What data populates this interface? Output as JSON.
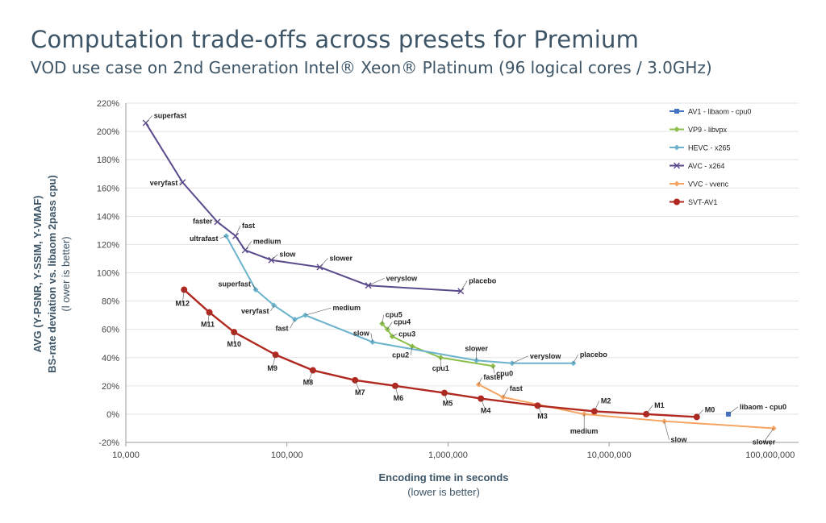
{
  "chart_data": {
    "type": "line",
    "title": "Computation trade-offs across presets for Premium",
    "subtitle": "VOD use case on 2nd Generation Intel® Xeon® Platinum (96 logical cores / 3.0GHz)",
    "xlabel": "Encoding time in seconds",
    "xlabel_note": "(lower is better)",
    "ylabel_lines": [
      "AVG (Y-PSNR, Y-SSIM, Y-VMAF)",
      "BS-rate deviation vs. libaom 2pass cpu)",
      "(l ower is better)"
    ],
    "x_scale": "log",
    "xlim": [
      10000,
      150000000
    ],
    "ylim": [
      -20,
      220
    ],
    "x_ticks": [
      10000,
      100000,
      1000000,
      10000000,
      100000000
    ],
    "x_tick_labels": [
      "10,000",
      "100,000",
      "1,000,000",
      "10,000,000",
      "100,000,000"
    ],
    "y_ticks": [
      -20,
      0,
      20,
      40,
      60,
      80,
      100,
      120,
      140,
      160,
      180,
      200,
      220
    ],
    "y_tick_labels": [
      "-20%",
      "0%",
      "20%",
      "40%",
      "60%",
      "80%",
      "100%",
      "120%",
      "140%",
      "160%",
      "180%",
      "200%",
      "220%"
    ],
    "grid": "horizontal",
    "legend_position": "top-right",
    "series": [
      {
        "name": "AV1 - libaom - cpu0",
        "color": "#4472c4",
        "marker": "square",
        "points": [
          {
            "x": 55000000,
            "y": 0,
            "label": "libaom - cpu0"
          }
        ]
      },
      {
        "name": "VP9 - libvpx",
        "color": "#8cbf4a",
        "marker": "diamond",
        "points": [
          {
            "x": 390000,
            "y": 64,
            "label": "cpu5"
          },
          {
            "x": 420000,
            "y": 60,
            "label": "cpu4"
          },
          {
            "x": 450000,
            "y": 55,
            "label": "cpu3"
          },
          {
            "x": 600000,
            "y": 48,
            "label": "cpu2"
          },
          {
            "x": 900000,
            "y": 40,
            "label": "cpu1"
          },
          {
            "x": 1900000,
            "y": 34,
            "label": "cpu0"
          }
        ]
      },
      {
        "name": "HEVC - x265",
        "color": "#6bb2cc",
        "marker": "diamond",
        "points": [
          {
            "x": 42000,
            "y": 126,
            "label": "ultrafast"
          },
          {
            "x": 64000,
            "y": 88,
            "label": "superfast"
          },
          {
            "x": 83000,
            "y": 77,
            "label": "veryfast"
          },
          {
            "x": 112000,
            "y": 67,
            "label": "fast"
          },
          {
            "x": 130000,
            "y": 70,
            "label": "medium"
          },
          {
            "x": 340000,
            "y": 51,
            "label": "slow"
          },
          {
            "x": 1500000,
            "y": 38,
            "label": "slower"
          },
          {
            "x": 2500000,
            "y": 36,
            "label": "veryslow"
          },
          {
            "x": 6000000,
            "y": 36,
            "label": "placebo"
          }
        ]
      },
      {
        "name": "AVC - x264",
        "color": "#5a4a8c",
        "marker": "x",
        "points": [
          {
            "x": 13300,
            "y": 206,
            "label": "superfast"
          },
          {
            "x": 22500,
            "y": 164,
            "label": "veryfast"
          },
          {
            "x": 37000,
            "y": 136,
            "label": "faster"
          },
          {
            "x": 48000,
            "y": 126,
            "label": "fast"
          },
          {
            "x": 55000,
            "y": 116,
            "label": "medium"
          },
          {
            "x": 80000,
            "y": 109,
            "label": "slow"
          },
          {
            "x": 160000,
            "y": 104,
            "label": "slower"
          },
          {
            "x": 320000,
            "y": 91,
            "label": "veryslow"
          },
          {
            "x": 1200000,
            "y": 87,
            "label": "placebo"
          }
        ]
      },
      {
        "name": "VVC - vvenc",
        "color": "#f4a460",
        "marker": "diamond",
        "points": [
          {
            "x": 1550000,
            "y": 21,
            "label": "faster"
          },
          {
            "x": 2200000,
            "y": 12,
            "label": "fast"
          },
          {
            "x": 7000000,
            "y": 0,
            "label": "medium"
          },
          {
            "x": 22000000,
            "y": -5,
            "label": "slow"
          },
          {
            "x": 105000000,
            "y": -10,
            "label": "slower"
          }
        ]
      },
      {
        "name": "SVT-AV1",
        "color": "#b0281f",
        "marker": "circle",
        "points": [
          {
            "x": 23000,
            "y": 88,
            "label": "M12"
          },
          {
            "x": 33000,
            "y": 72,
            "label": "M11"
          },
          {
            "x": 47000,
            "y": 58,
            "label": "M10"
          },
          {
            "x": 85000,
            "y": 42,
            "label": "M9"
          },
          {
            "x": 145000,
            "y": 31,
            "label": "M8"
          },
          {
            "x": 265000,
            "y": 24,
            "label": "M7"
          },
          {
            "x": 470000,
            "y": 20,
            "label": "M6"
          },
          {
            "x": 950000,
            "y": 15,
            "label": "M5"
          },
          {
            "x": 1600000,
            "y": 11,
            "label": "M4"
          },
          {
            "x": 3600000,
            "y": 6,
            "label": "M3"
          },
          {
            "x": 8100000,
            "y": 2,
            "label": "M2"
          },
          {
            "x": 17000000,
            "y": 0,
            "label": "M1"
          },
          {
            "x": 35000000,
            "y": -2,
            "label": "M0"
          }
        ]
      }
    ]
  }
}
